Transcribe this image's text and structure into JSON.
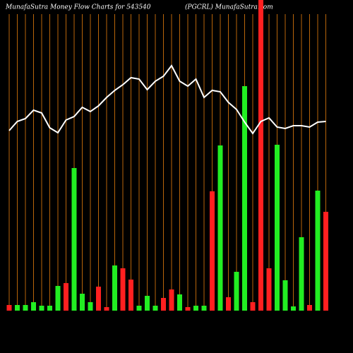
{
  "chart_data": {
    "type": "bar",
    "title": "MunafaSutra  Money Flow  Charts for 543540",
    "subtitle": "(PGCRL) MunafaSutra.com",
    "ylim": [
      0,
      440
    ],
    "grid_color": "#b8650a",
    "values": [
      8,
      8,
      8,
      12,
      7,
      7,
      35,
      39,
      202,
      24,
      12,
      34,
      5,
      64,
      60,
      44,
      7,
      21,
      7,
      18,
      30,
      23,
      5,
      7,
      7,
      169,
      234,
      19,
      55,
      318,
      12,
      440,
      60,
      235,
      43,
      6,
      104,
      8,
      170,
      140
    ],
    "bar_colors": [
      "#ff2020",
      "#22ee22",
      "#22ee22",
      "#22ee22",
      "#22ee22",
      "#22ee22",
      "#22ee22",
      "#ff2020",
      "#22ee22",
      "#22ee22",
      "#22ee22",
      "#ff2020",
      "#ff2020",
      "#22ee22",
      "#ff2020",
      "#ff2020",
      "#22ee22",
      "#22ee22",
      "#22ee22",
      "#ff2020",
      "#ff2020",
      "#22ee22",
      "#ff2020",
      "#22ee22",
      "#22ee22",
      "#ff2020",
      "#22ee22",
      "#ff2020",
      "#22ee22",
      "#22ee22",
      "#ff2020",
      "#ff2020",
      "#ff2020",
      "#22ee22",
      "#22ee22",
      "#22ee22",
      "#22ee22",
      "#ff2020",
      "#22ee22",
      "#ff2020"
    ],
    "line": {
      "color": "#ffffff",
      "values": [
        255,
        268,
        272,
        284,
        280,
        259,
        252,
        270,
        275,
        288,
        282,
        290,
        302,
        312,
        320,
        330,
        328,
        313,
        325,
        332,
        347,
        325,
        318,
        328,
        302,
        312,
        310,
        295,
        285,
        267,
        251,
        268,
        273,
        260,
        258,
        262,
        262,
        260,
        267,
        268
      ]
    }
  }
}
